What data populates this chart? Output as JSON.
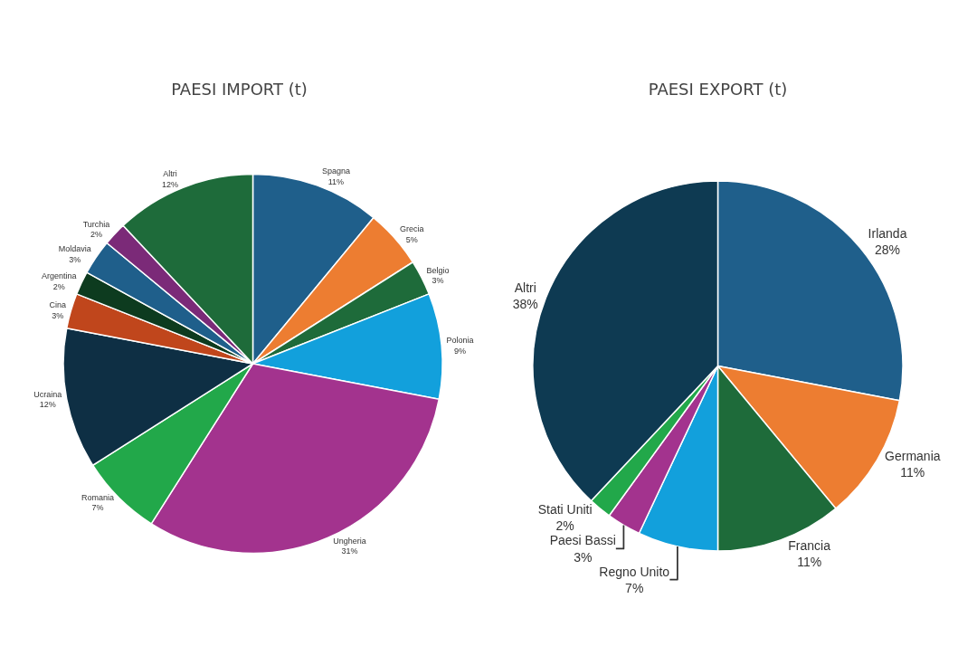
{
  "chart_data": [
    {
      "type": "pie",
      "title": "PAESI IMPORT (t)",
      "categories": [
        "Spagna",
        "Grecia",
        "Belgio",
        "Polonia",
        "Ungheria",
        "Romania",
        "Ucraina",
        "Cina",
        "Argentina",
        "Moldavia",
        "Turchia",
        "Altri"
      ],
      "values": [
        11,
        5,
        3,
        9,
        31,
        7,
        12,
        3,
        2,
        3,
        2,
        12
      ],
      "value_labels": [
        "11%",
        "5%",
        "3%",
        "9%",
        "31%",
        "7%",
        "12%",
        "3%",
        "2%",
        "3%",
        "2%",
        "12%"
      ],
      "colors": [
        "#1f5f8b",
        "#ed7d31",
        "#1e6b3a",
        "#12a0dc",
        "#a3338e",
        "#22a84a",
        "#0e2f44",
        "#c0461c",
        "#0d3b1f",
        "#1f5f8b",
        "#7b2a78",
        "#1e6b3a"
      ],
      "legend": false
    },
    {
      "type": "pie",
      "title": "PAESI EXPORT (t)",
      "categories": [
        "Irlanda",
        "Germania",
        "Francia",
        "Regno Unito",
        "Paesi Bassi",
        "Stati Uniti",
        "Altri"
      ],
      "values": [
        28,
        11,
        11,
        7,
        3,
        2,
        38
      ],
      "value_labels": [
        "28%",
        "11%",
        "11%",
        "7%",
        "3%",
        "2%",
        "38%"
      ],
      "colors": [
        "#1f5f8b",
        "#ed7d31",
        "#1e6b3a",
        "#12a0dc",
        "#a3338e",
        "#22a84a",
        "#0e3a52"
      ],
      "legend": false
    }
  ]
}
